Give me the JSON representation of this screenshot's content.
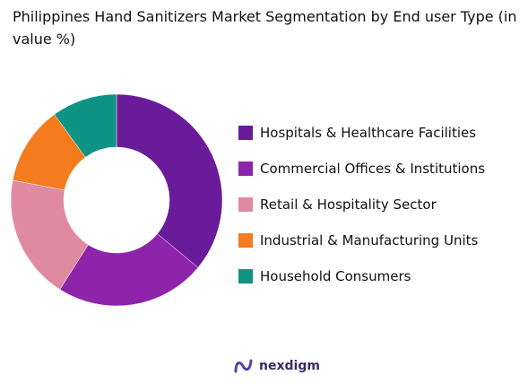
{
  "title": "Philippines Hand Sanitizers Market Segmentation by End user Type (in value %)",
  "chart_data": {
    "type": "pie",
    "title": "Philippines Hand Sanitizers Market Segmentation by End user Type (in value %)",
    "subtype": "donut",
    "legend_position": "right",
    "categories": [
      "Hospitals & Healthcare Facilities",
      "Commercial Offices & Institutions",
      "Retail & Hospitality Sector",
      "Industrial & Manufacturing Units",
      "Household Consumers"
    ],
    "values": [
      36,
      23,
      19,
      12,
      10
    ],
    "colors": [
      "#6a1b9a",
      "#8e24aa",
      "#e08aa2",
      "#f47b1e",
      "#0e9384"
    ]
  },
  "logo": {
    "text": "nexdigm",
    "icon": "nexdigm-logo-icon"
  }
}
